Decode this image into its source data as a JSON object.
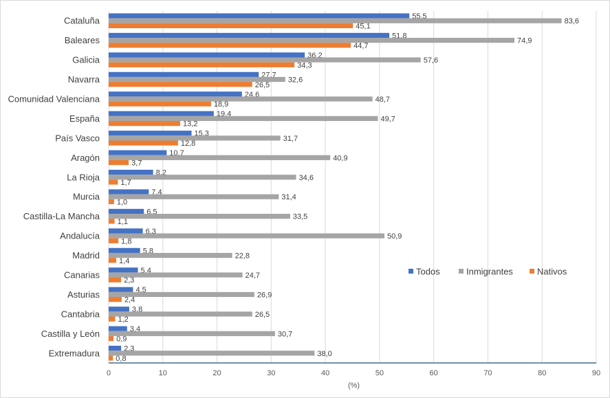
{
  "chart_data": {
    "type": "bar",
    "orientation": "horizontal",
    "xlabel": "(%)",
    "xlim": [
      0,
      90
    ],
    "xticks": [
      "0",
      "10",
      "20",
      "30",
      "40",
      "50",
      "60",
      "70",
      "80",
      "90"
    ],
    "legend_position": "right",
    "categories": [
      "Cataluña",
      "Baleares",
      "Galicia",
      "Navarra",
      "Comunidad Valenciana",
      "España",
      "País Vasco",
      "Aragón",
      "La Rioja",
      "Murcia",
      "Castilla-La Mancha",
      "Andalucía",
      "Madrid",
      "Canarias",
      "Asturias",
      "Cantabria",
      "Castilla y León",
      "Extremadura"
    ],
    "series": [
      {
        "name": "Todos",
        "color": "#4472C4",
        "values": [
          55.5,
          51.8,
          36.2,
          27.7,
          24.6,
          19.4,
          15.3,
          10.7,
          8.2,
          7.4,
          6.5,
          6.3,
          5.8,
          5.4,
          4.5,
          3.8,
          3.4,
          2.3
        ],
        "labels": [
          "55,5",
          "51,8",
          "36,2",
          "27,7",
          "24,6",
          "19,4",
          "15,3",
          "10,7",
          "8,2",
          "7,4",
          "6,5",
          "6,3",
          "5,8",
          "5,4",
          "4,5",
          "3,8",
          "3,4",
          "2,3"
        ]
      },
      {
        "name": "Inmigrantes",
        "color": "#A5A5A5",
        "values": [
          83.6,
          74.9,
          57.6,
          32.6,
          48.7,
          49.7,
          31.7,
          40.9,
          34.6,
          31.4,
          33.5,
          50.9,
          22.8,
          24.7,
          26.9,
          26.5,
          30.7,
          38.0
        ],
        "labels": [
          "83,6",
          "74,9",
          "57,6",
          "32,6",
          "48,7",
          "49,7",
          "31,7",
          "40,9",
          "34,6",
          "31,4",
          "33,5",
          "50,9",
          "22,8",
          "24,7",
          "26,9",
          "26,5",
          "30,7",
          "38,0"
        ]
      },
      {
        "name": "Nativos",
        "color": "#ED7D31",
        "values": [
          45.1,
          44.7,
          34.3,
          26.5,
          18.9,
          13.2,
          12.8,
          3.7,
          1.7,
          1.0,
          1.1,
          1.8,
          1.4,
          2.3,
          2.4,
          1.2,
          0.9,
          0.8
        ],
        "labels": [
          "45,1",
          "44,7",
          "34,3",
          "26,5",
          "18,9",
          "13,2",
          "12,8",
          "3,7",
          "1,7",
          "1,0",
          "1,1",
          "1,8",
          "1,4",
          "2,3",
          "2,4",
          "1,2",
          "0,9",
          "0,8"
        ]
      }
    ]
  }
}
